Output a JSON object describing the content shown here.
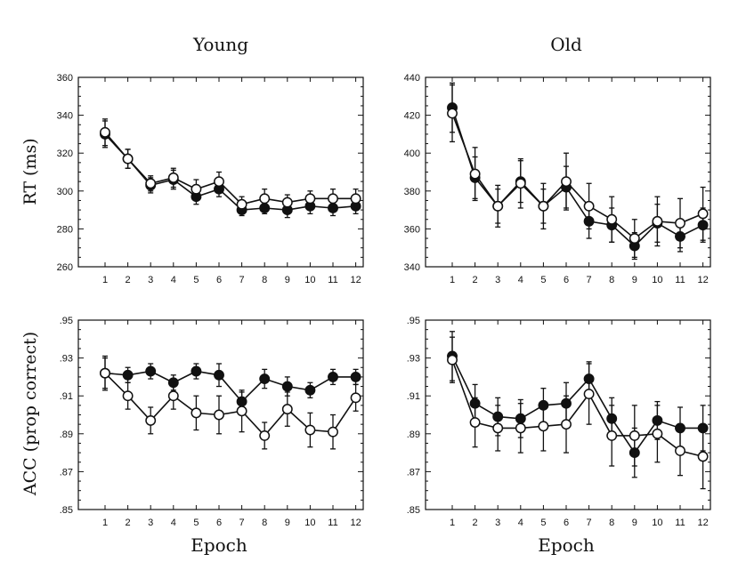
{
  "figure": {
    "column_titles": [
      "Young",
      "Old"
    ],
    "row_labels": [
      "RT (ms)",
      "ACC (prop correct)"
    ],
    "x_label": "Epoch"
  },
  "style": {
    "line_color": "#111111",
    "filled_marker": "#111111",
    "open_marker": "#ffffff"
  },
  "chart_data": [
    {
      "type": "line",
      "title": "Young",
      "ylabel": "RT (ms)",
      "xlabel": "",
      "x": [
        1,
        2,
        3,
        4,
        5,
        6,
        7,
        8,
        9,
        10,
        11,
        12
      ],
      "ylim": [
        260,
        360
      ],
      "yticks": [
        "260",
        "280",
        "300",
        "320",
        "340",
        "360"
      ],
      "grid": false,
      "series": [
        {
          "marker": "filled",
          "values": [
            330,
            317,
            303,
            306,
            297,
            301,
            290,
            291,
            290,
            292,
            291,
            292
          ],
          "errors": [
            7,
            5,
            4,
            5,
            4,
            4,
            3,
            3,
            4,
            4,
            4,
            4
          ]
        },
        {
          "marker": "open",
          "values": [
            331,
            317,
            304,
            307,
            301,
            305,
            293,
            296,
            294,
            296,
            296,
            296
          ],
          "errors": [
            7,
            5,
            4,
            5,
            5,
            5,
            4,
            5,
            4,
            4,
            5,
            5
          ]
        }
      ]
    },
    {
      "type": "line",
      "title": "Old",
      "ylabel": "",
      "xlabel": "",
      "x": [
        1,
        2,
        3,
        4,
        5,
        6,
        7,
        8,
        9,
        10,
        11,
        12
      ],
      "ylim": [
        340,
        440
      ],
      "yticks": [
        "340",
        "360",
        "380",
        "400",
        "420",
        "440"
      ],
      "grid": false,
      "series": [
        {
          "marker": "filled",
          "values": [
            424,
            387,
            372,
            385,
            372,
            382,
            364,
            362,
            351,
            363,
            356,
            362
          ],
          "errors": [
            13,
            11,
            9,
            11,
            9,
            11,
            9,
            9,
            7,
            10,
            8,
            9
          ]
        },
        {
          "marker": "open",
          "values": [
            421,
            389,
            372,
            384,
            372,
            385,
            372,
            365,
            355,
            364,
            363,
            368
          ],
          "errors": [
            15,
            14,
            11,
            13,
            12,
            15,
            12,
            12,
            10,
            13,
            13,
            14
          ]
        }
      ]
    },
    {
      "type": "line",
      "title": "",
      "ylabel": "ACC (prop correct)",
      "xlabel": "Epoch",
      "x": [
        1,
        2,
        3,
        4,
        5,
        6,
        7,
        8,
        9,
        10,
        11,
        12
      ],
      "ylim": [
        0.85,
        0.95
      ],
      "yticks": [
        ".85",
        ".87",
        ".89",
        ".91",
        ".93",
        ".95"
      ],
      "grid": false,
      "series": [
        {
          "marker": "filled",
          "values": [
            0.922,
            0.921,
            0.923,
            0.917,
            0.923,
            0.921,
            0.907,
            0.919,
            0.915,
            0.913,
            0.92,
            0.92
          ],
          "errors": [
            0.008,
            0.004,
            0.004,
            0.004,
            0.004,
            0.006,
            0.005,
            0.005,
            0.005,
            0.004,
            0.004,
            0.004
          ]
        },
        {
          "marker": "open",
          "values": [
            0.922,
            0.91,
            0.897,
            0.91,
            0.901,
            0.9,
            0.902,
            0.889,
            0.903,
            0.892,
            0.891,
            0.909
          ],
          "errors": [
            0.009,
            0.007,
            0.007,
            0.007,
            0.009,
            0.01,
            0.011,
            0.007,
            0.009,
            0.009,
            0.009,
            0.007
          ]
        }
      ]
    },
    {
      "type": "line",
      "title": "",
      "ylabel": "",
      "xlabel": "Epoch",
      "x": [
        1,
        2,
        3,
        4,
        5,
        6,
        7,
        8,
        9,
        10,
        11,
        12
      ],
      "ylim": [
        0.85,
        0.95
      ],
      "yticks": [
        ".85",
        ".87",
        ".89",
        ".91",
        ".93",
        ".95"
      ],
      "grid": false,
      "series": [
        {
          "marker": "filled",
          "values": [
            0.931,
            0.906,
            0.899,
            0.898,
            0.905,
            0.906,
            0.919,
            0.898,
            0.88,
            0.897,
            0.893,
            0.893
          ],
          "errors": [
            0.013,
            0.01,
            0.01,
            0.01,
            0.009,
            0.011,
            0.009,
            0.011,
            0.013,
            0.01,
            0.011,
            0.012
          ]
        },
        {
          "marker": "open",
          "values": [
            0.929,
            0.896,
            0.893,
            0.893,
            0.894,
            0.895,
            0.911,
            0.889,
            0.889,
            0.89,
            0.881,
            0.878
          ],
          "errors": [
            0.012,
            0.013,
            0.012,
            0.013,
            0.013,
            0.015,
            0.016,
            0.016,
            0.016,
            0.015,
            0.013,
            0.017
          ]
        }
      ]
    }
  ]
}
